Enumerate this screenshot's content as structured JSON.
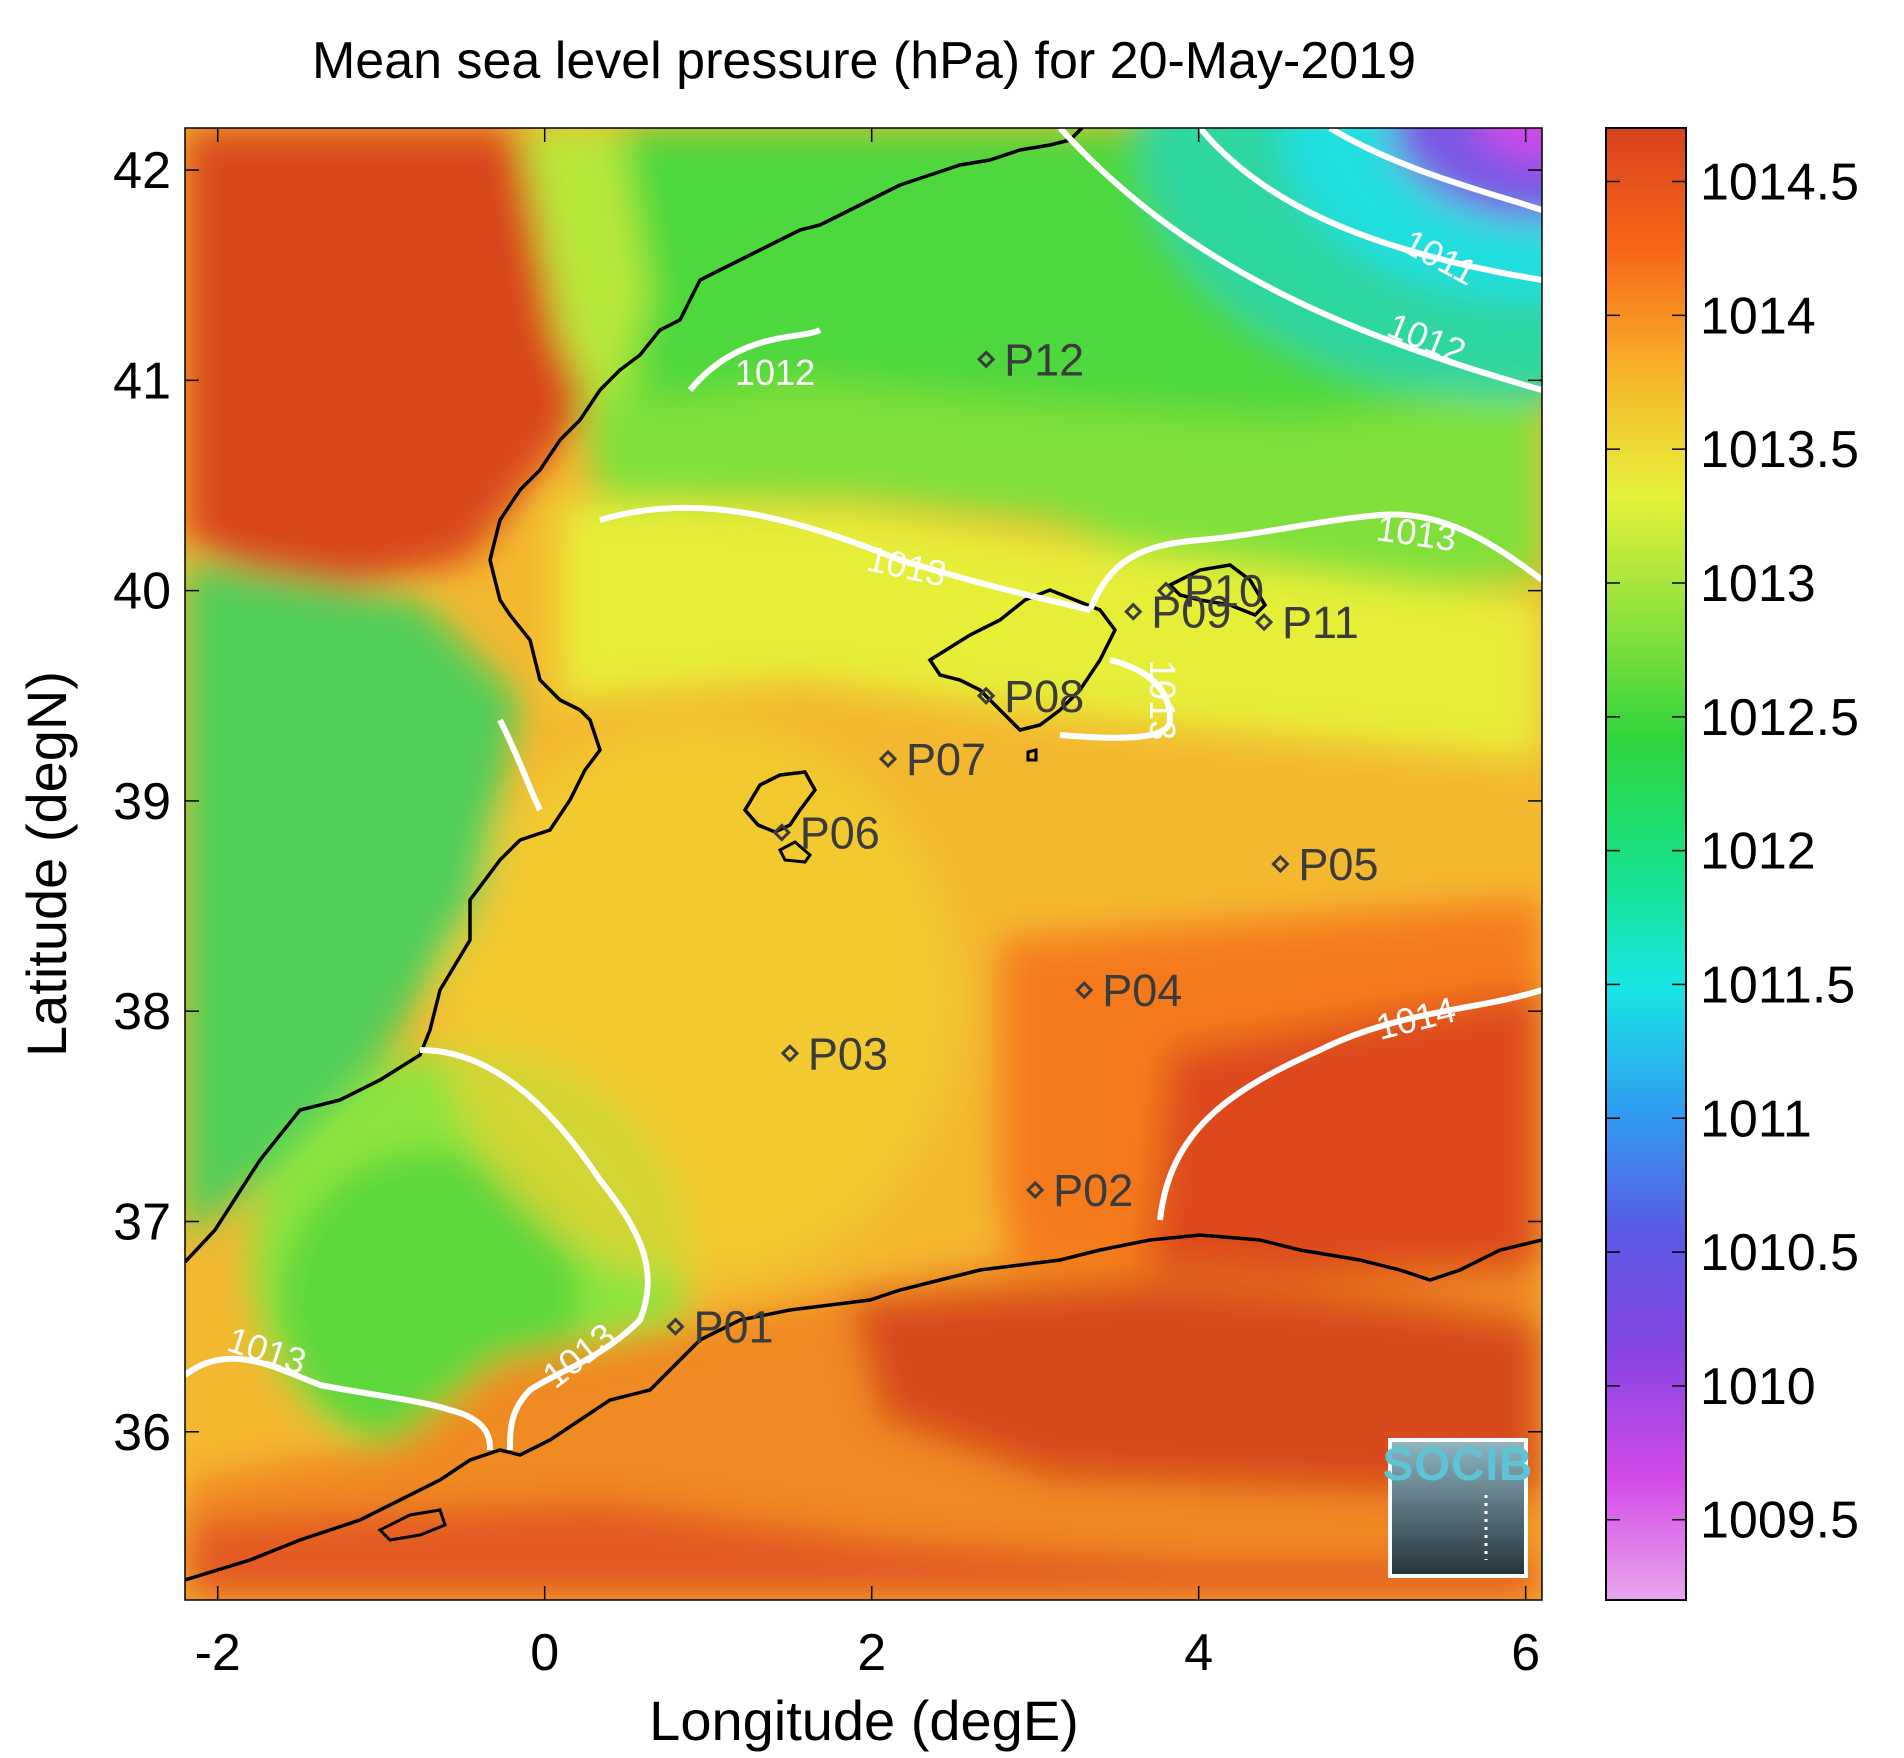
{
  "title": "Mean sea level pressure (hPa) for 20-May-2019",
  "x_axis": {
    "label": "Longitude (degE)",
    "range": [
      -2.2,
      6.1
    ],
    "ticks": [
      {
        "value": -2,
        "label": "-2"
      },
      {
        "value": 0,
        "label": "0"
      },
      {
        "value": 2,
        "label": "2"
      },
      {
        "value": 4,
        "label": "4"
      },
      {
        "value": 6,
        "label": "6"
      }
    ]
  },
  "y_axis": {
    "label": "Latitude (degN)",
    "range": [
      35.2,
      42.2
    ],
    "ticks": [
      {
        "value": 36,
        "label": "36"
      },
      {
        "value": 37,
        "label": "37"
      },
      {
        "value": 38,
        "label": "38"
      },
      {
        "value": 39,
        "label": "39"
      },
      {
        "value": 40,
        "label": "40"
      },
      {
        "value": 41,
        "label": "41"
      },
      {
        "value": 42,
        "label": "42"
      }
    ]
  },
  "colorbar": {
    "range": [
      1009.2,
      1014.7
    ],
    "colors": [
      "#e9a6ec",
      "#d24ae8",
      "#8845e3",
      "#5a5ae6",
      "#2f9ef0",
      "#18e6e4",
      "#17e285",
      "#2fd43c",
      "#8fe23c",
      "#e6f13a",
      "#f7b52a",
      "#f76717",
      "#d8431e"
    ],
    "ticks": [
      {
        "value": 1009.5,
        "label": "1009.5"
      },
      {
        "value": 1010,
        "label": "1010"
      },
      {
        "value": 1010.5,
        "label": "1010.5"
      },
      {
        "value": 1011,
        "label": "1011"
      },
      {
        "value": 1011.5,
        "label": "1011.5"
      },
      {
        "value": 1012,
        "label": "1012"
      },
      {
        "value": 1012.5,
        "label": "1012.5"
      },
      {
        "value": 1013,
        "label": "1013"
      },
      {
        "value": 1013.5,
        "label": "1013.5"
      },
      {
        "value": 1014,
        "label": "1014"
      },
      {
        "value": 1014.5,
        "label": "1014.5"
      }
    ]
  },
  "stations": [
    {
      "id": "P01",
      "lon": 0.8,
      "lat": 36.5
    },
    {
      "id": "P02",
      "lon": 3.0,
      "lat": 37.15
    },
    {
      "id": "P03",
      "lon": 1.5,
      "lat": 37.8
    },
    {
      "id": "P04",
      "lon": 3.3,
      "lat": 38.1
    },
    {
      "id": "P05",
      "lon": 4.5,
      "lat": 38.7
    },
    {
      "id": "P06",
      "lon": 1.45,
      "lat": 38.85
    },
    {
      "id": "P07",
      "lon": 2.1,
      "lat": 39.2
    },
    {
      "id": "P08",
      "lon": 2.7,
      "lat": 39.5
    },
    {
      "id": "P09",
      "lon": 3.6,
      "lat": 39.9
    },
    {
      "id": "P10",
      "lon": 3.8,
      "lat": 40.0
    },
    {
      "id": "P11",
      "lon": 4.4,
      "lat": 39.85
    },
    {
      "id": "P12",
      "lon": 2.7,
      "lat": 41.1
    }
  ],
  "contour_labels": [
    "1011",
    "1012",
    "1012",
    "1013",
    "1013",
    "1013",
    "1013",
    "1013",
    "1014"
  ],
  "logo": {
    "text": "SOCIB"
  }
}
